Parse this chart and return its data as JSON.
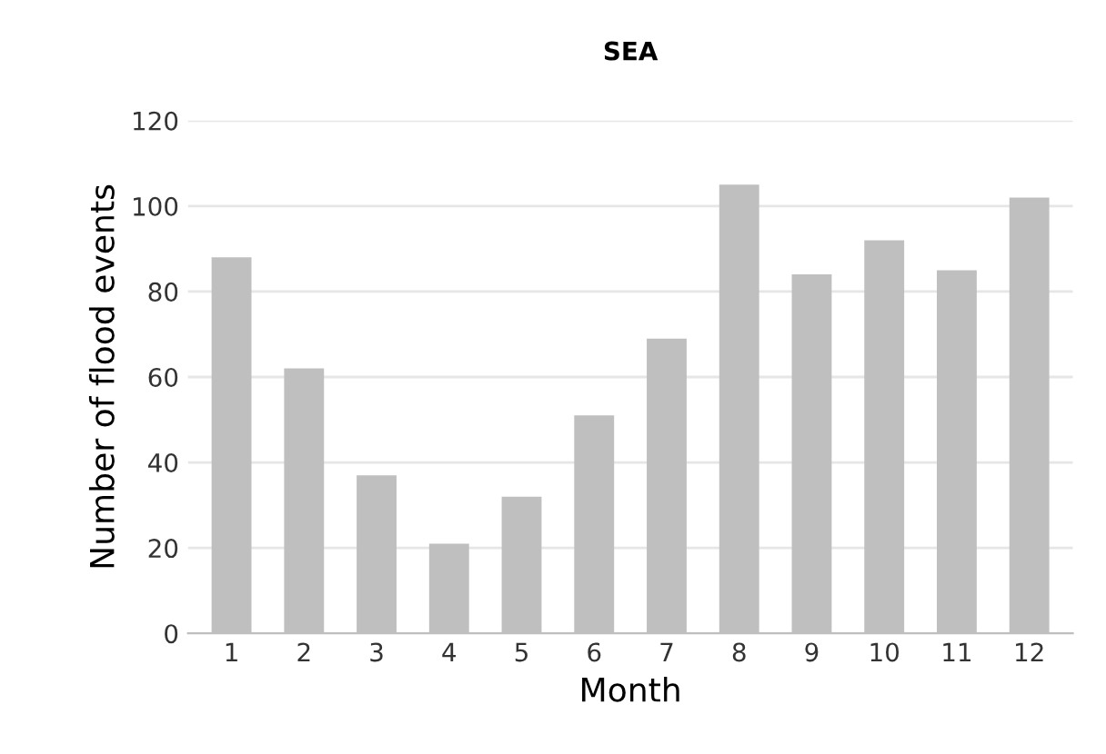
{
  "chart_data": {
    "type": "bar",
    "title": "SEA",
    "xlabel": "Month",
    "ylabel": "Number of flood events",
    "categories": [
      "1",
      "2",
      "3",
      "4",
      "5",
      "6",
      "7",
      "8",
      "9",
      "10",
      "11",
      "12"
    ],
    "values": [
      88,
      62,
      37,
      21,
      32,
      51,
      69,
      105,
      84,
      92,
      85,
      102
    ],
    "color": "#bfbfbf",
    "ylim": [
      0,
      120
    ],
    "yticks": [
      0,
      20,
      40,
      60,
      80,
      100,
      120
    ],
    "grid": "y",
    "legend": false
  }
}
